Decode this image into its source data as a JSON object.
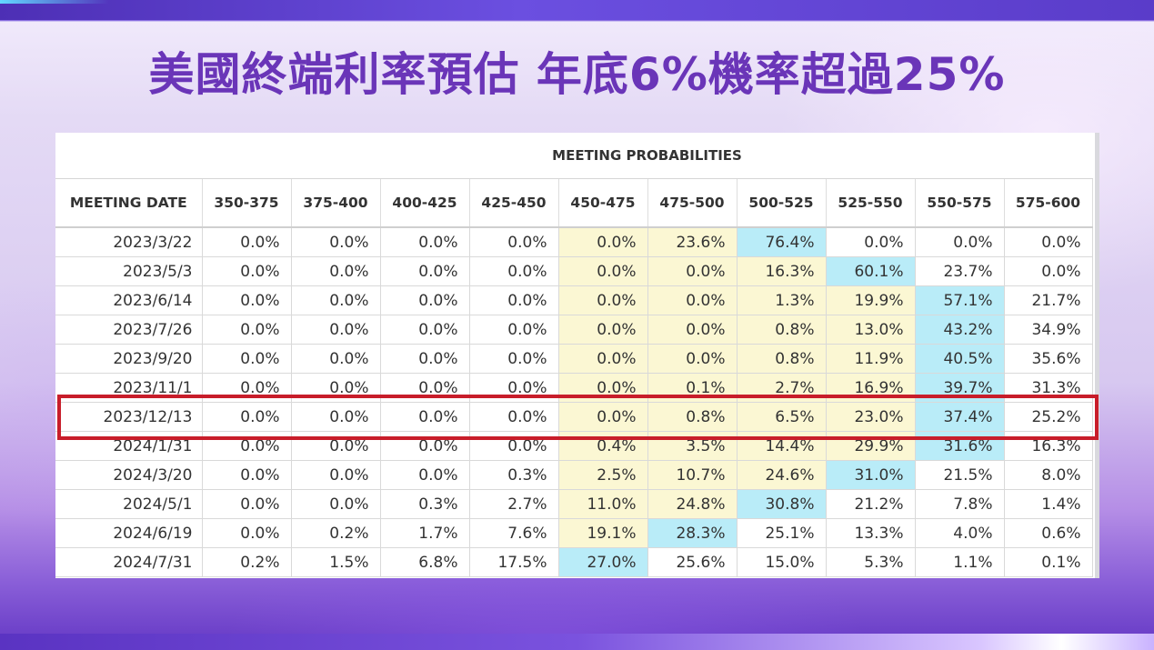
{
  "title": "美國終端利率預估 年底6%機率超過25%",
  "table": {
    "super_header": "MEETING PROBABILITIES",
    "columns": [
      "MEETING DATE",
      "350-375",
      "375-400",
      "400-425",
      "425-450",
      "450-475",
      "475-500",
      "500-525",
      "525-550",
      "550-575",
      "575-600"
    ],
    "rows": [
      {
        "date": "2023/3/22",
        "values": [
          "0.0%",
          "0.0%",
          "0.0%",
          "0.0%",
          "0.0%",
          "23.6%",
          "76.4%",
          "0.0%",
          "0.0%",
          "0.0%"
        ],
        "shade": [
          "",
          "",
          "",
          "",
          "y",
          "y",
          "b",
          "",
          "",
          ""
        ]
      },
      {
        "date": "2023/5/3",
        "values": [
          "0.0%",
          "0.0%",
          "0.0%",
          "0.0%",
          "0.0%",
          "0.0%",
          "16.3%",
          "60.1%",
          "23.7%",
          "0.0%"
        ],
        "shade": [
          "",
          "",
          "",
          "",
          "y",
          "y",
          "y",
          "b",
          "",
          ""
        ]
      },
      {
        "date": "2023/6/14",
        "values": [
          "0.0%",
          "0.0%",
          "0.0%",
          "0.0%",
          "0.0%",
          "0.0%",
          "1.3%",
          "19.9%",
          "57.1%",
          "21.7%"
        ],
        "shade": [
          "",
          "",
          "",
          "",
          "y",
          "y",
          "y",
          "y",
          "b",
          ""
        ]
      },
      {
        "date": "2023/7/26",
        "values": [
          "0.0%",
          "0.0%",
          "0.0%",
          "0.0%",
          "0.0%",
          "0.0%",
          "0.8%",
          "13.0%",
          "43.2%",
          "34.9%"
        ],
        "shade": [
          "",
          "",
          "",
          "",
          "y",
          "y",
          "y",
          "y",
          "b",
          ""
        ]
      },
      {
        "date": "2023/9/20",
        "values": [
          "0.0%",
          "0.0%",
          "0.0%",
          "0.0%",
          "0.0%",
          "0.0%",
          "0.8%",
          "11.9%",
          "40.5%",
          "35.6%"
        ],
        "shade": [
          "",
          "",
          "",
          "",
          "y",
          "y",
          "y",
          "y",
          "b",
          ""
        ]
      },
      {
        "date": "2023/11/1",
        "values": [
          "0.0%",
          "0.0%",
          "0.0%",
          "0.0%",
          "0.0%",
          "0.1%",
          "2.7%",
          "16.9%",
          "39.7%",
          "31.3%"
        ],
        "shade": [
          "",
          "",
          "",
          "",
          "y",
          "y",
          "y",
          "y",
          "b",
          ""
        ]
      },
      {
        "date": "2023/12/13",
        "values": [
          "0.0%",
          "0.0%",
          "0.0%",
          "0.0%",
          "0.0%",
          "0.8%",
          "6.5%",
          "23.0%",
          "37.4%",
          "25.2%"
        ],
        "shade": [
          "",
          "",
          "",
          "",
          "y",
          "y",
          "y",
          "y",
          "b",
          ""
        ]
      },
      {
        "date": "2024/1/31",
        "values": [
          "0.0%",
          "0.0%",
          "0.0%",
          "0.0%",
          "0.4%",
          "3.5%",
          "14.4%",
          "29.9%",
          "31.6%",
          "16.3%"
        ],
        "shade": [
          "",
          "",
          "",
          "",
          "y",
          "y",
          "y",
          "y",
          "b",
          ""
        ]
      },
      {
        "date": "2024/3/20",
        "values": [
          "0.0%",
          "0.0%",
          "0.0%",
          "0.3%",
          "2.5%",
          "10.7%",
          "24.6%",
          "31.0%",
          "21.5%",
          "8.0%"
        ],
        "shade": [
          "",
          "",
          "",
          "",
          "y",
          "y",
          "y",
          "b",
          "",
          ""
        ]
      },
      {
        "date": "2024/5/1",
        "values": [
          "0.0%",
          "0.0%",
          "0.3%",
          "2.7%",
          "11.0%",
          "24.8%",
          "30.8%",
          "21.2%",
          "7.8%",
          "1.4%"
        ],
        "shade": [
          "",
          "",
          "",
          "",
          "y",
          "y",
          "b",
          "",
          "",
          ""
        ]
      },
      {
        "date": "2024/6/19",
        "values": [
          "0.0%",
          "0.2%",
          "1.7%",
          "7.6%",
          "19.1%",
          "28.3%",
          "25.1%",
          "13.3%",
          "4.0%",
          "0.6%"
        ],
        "shade": [
          "",
          "",
          "",
          "",
          "y",
          "b",
          "",
          "",
          "",
          ""
        ]
      },
      {
        "date": "2024/7/31",
        "values": [
          "0.2%",
          "1.5%",
          "6.8%",
          "17.5%",
          "27.0%",
          "25.6%",
          "15.0%",
          "5.3%",
          "1.1%",
          "0.1%"
        ],
        "shade": [
          "",
          "",
          "",
          "",
          "b",
          "",
          "",
          "",
          "",
          ""
        ]
      }
    ],
    "highlighted_row": "2023/12/13"
  },
  "colors": {
    "title": "#6a35b8",
    "highlight_border": "#c81d2a",
    "shade_yellow": "#fbf7d3",
    "shade_blue": "#b9ecf8"
  }
}
